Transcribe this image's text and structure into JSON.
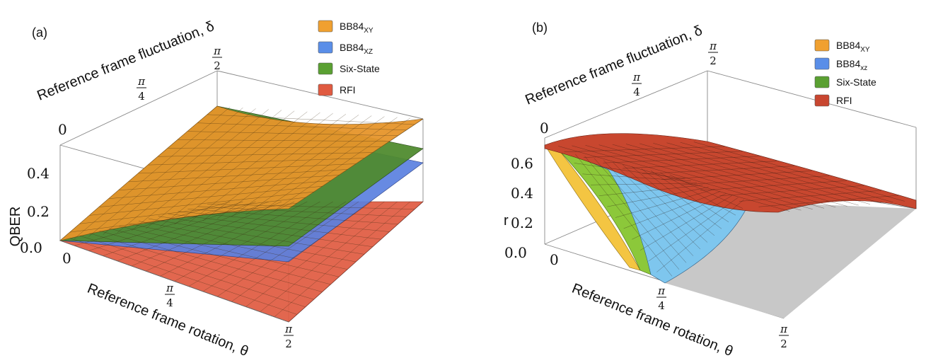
{
  "panels": [
    {
      "id": "a",
      "panel_label": "(a)",
      "legend": [
        {
          "label": "BB84",
          "sub": "XY",
          "color": "#f0a030"
        },
        {
          "label": "BB84",
          "sub": "XZ",
          "color": "#5a8ee8"
        },
        {
          "label": "Six-State",
          "sub": "",
          "color": "#5aa032"
        },
        {
          "label": "RFI",
          "sub": "",
          "color": "#e05a40"
        }
      ]
    },
    {
      "id": "b",
      "panel_label": "(b)",
      "legend": [
        {
          "label": "BB84",
          "sub": "XY",
          "color": "#f0a030"
        },
        {
          "label": "BB84",
          "sub": "xz",
          "color": "#5a8ee8"
        },
        {
          "label": "Six-State",
          "sub": "",
          "color": "#5aa032"
        },
        {
          "label": "RFI",
          "sub": "",
          "color": "#c84630"
        }
      ]
    }
  ],
  "chart_data": [
    {
      "type": "surface3d",
      "panel": "(a)",
      "xlabel": "Reference frame rotation, θ",
      "ylabel": "Reference frame fluctuation, δ",
      "zlabel": "QBER",
      "x_ticks": [
        "0",
        "π/4",
        "π/2"
      ],
      "y_ticks": [
        "0",
        "π/4",
        "π/2"
      ],
      "z_ticks": [
        "0.0",
        "0.2",
        "0.4"
      ],
      "xlim": [
        0,
        1.5708
      ],
      "ylim": [
        0,
        1.5708
      ],
      "zlim": [
        0,
        0.5
      ],
      "series": [
        {
          "name": "BB84XY",
          "color": "#f0a030",
          "corners": {
            "t0d0": 0.0,
            "t1d0": 0.5,
            "t0d1": 0.25,
            "t1d1": 0.5
          }
        },
        {
          "name": "BB84XZ",
          "color": "#5a8ee8",
          "corners": {
            "t0d0": 0.0,
            "t1d0": 0.0,
            "t0d1": 0.25,
            "t1d1": 0.25
          }
        },
        {
          "name": "Six-State",
          "color": "#5aa032",
          "corners": {
            "t0d0": 0.0,
            "t1d0": 0.17,
            "t0d1": 0.33,
            "t1d1": 0.33
          }
        },
        {
          "name": "RFI",
          "color": "#e05a40",
          "corners": {
            "t0d0": 0.0,
            "t1d0": 0.0,
            "t0d1": 0.0,
            "t1d1": 0.0
          }
        }
      ]
    },
    {
      "type": "surface3d",
      "panel": "(b)",
      "xlabel": "Reference frame rotation, θ",
      "ylabel": "Reference frame fluctuation, δ",
      "zlabel": "r",
      "x_ticks": [
        "0",
        "π/4",
        "π/2"
      ],
      "y_ticks": [
        "0",
        "π/4",
        "π/2"
      ],
      "z_ticks": [
        "0.0",
        "0.2",
        "0.4",
        "0.6"
      ],
      "xlim": [
        0,
        1.5708
      ],
      "ylim": [
        0,
        1.5708
      ],
      "zlim": [
        0,
        0.7
      ],
      "series": [
        {
          "name": "BB84XY",
          "color": "#f0a030",
          "corners": {
            "t0d0": 0.66,
            "t1d0": 0.0,
            "t0d1": 0.0,
            "t1d1": 0.0
          }
        },
        {
          "name": "BB84xz",
          "color": "#5a8ee8",
          "corners": {
            "t0d0": 0.66,
            "t1d0": 0.0,
            "t0d1": 0.0,
            "t1d1": 0.0
          }
        },
        {
          "name": "Six-State",
          "color": "#5aa032",
          "corners": {
            "t0d0": 0.66,
            "t1d0": 0.0,
            "t0d1": 0.0,
            "t1d1": 0.0
          }
        },
        {
          "name": "RFI",
          "color": "#c84630",
          "corners": {
            "t0d0": 0.66,
            "t1d0": 0.55,
            "t0d1": 0.0,
            "t1d1": 0.0
          }
        }
      ]
    }
  ]
}
